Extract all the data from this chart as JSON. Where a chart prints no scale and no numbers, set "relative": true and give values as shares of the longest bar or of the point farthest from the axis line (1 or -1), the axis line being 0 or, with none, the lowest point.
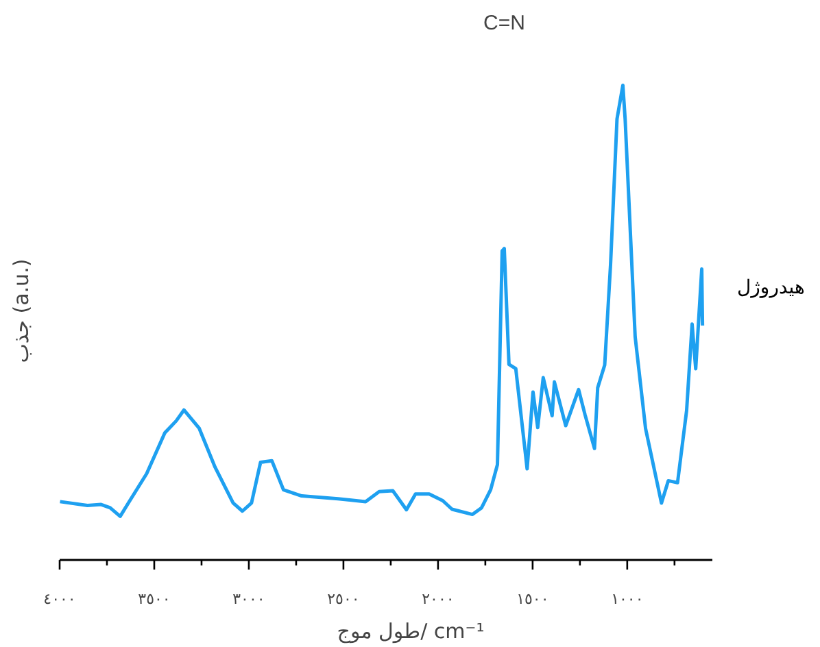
{
  "chart_data": {
    "type": "line",
    "relative": true,
    "xlabel": "طول موج/ cm⁻¹",
    "ylabel": "جذب (a.u.)",
    "annotations": [
      "C=N"
    ],
    "xlim": [
      4000,
      550
    ],
    "xticks": [
      {
        "value": 4000,
        "label": "٤٠٠٠"
      },
      {
        "value": 3750,
        "label": null
      },
      {
        "value": 3500,
        "label": "٣٥٠٠"
      },
      {
        "value": 3250,
        "label": null
      },
      {
        "value": 3000,
        "label": "٣٠٠٠"
      },
      {
        "value": 2750,
        "label": null
      },
      {
        "value": 2500,
        "label": "٢٥٠٠"
      },
      {
        "value": 2250,
        "label": null
      },
      {
        "value": 2000,
        "label": "٢٠٠٠"
      },
      {
        "value": 1750,
        "label": null
      },
      {
        "value": 1500,
        "label": "١٥٠٠"
      },
      {
        "value": 1250,
        "label": null
      },
      {
        "value": 1000,
        "label": "١٠٠٠"
      },
      {
        "value": 750,
        "label": null
      }
    ],
    "grid": false,
    "legend": false,
    "series": [
      {
        "name": "هیدروژل",
        "color": "#1ea0f0",
        "x": [
          3998,
          3853,
          3781,
          3733,
          3680,
          3637,
          3540,
          3444,
          3384,
          3343,
          3263,
          3179,
          3083,
          3034,
          2986,
          2938,
          2878,
          2817,
          2721,
          2528,
          2383,
          2311,
          2239,
          2167,
          2119,
          2047,
          1975,
          1926,
          1818,
          1770,
          1722,
          1686,
          1661,
          1650,
          1625,
          1589,
          1529,
          1498,
          1473,
          1444,
          1397,
          1385,
          1325,
          1257,
          1223,
          1173,
          1156,
          1119,
          1088,
          1054,
          1023,
          1011,
          958,
          903,
          819,
          783,
          734,
          686,
          657,
          638,
          606,
          602
        ],
        "values": [
          0.123,
          0.115,
          0.117,
          0.11,
          0.092,
          0.12,
          0.182,
          0.268,
          0.293,
          0.316,
          0.278,
          0.196,
          0.12,
          0.103,
          0.12,
          0.206,
          0.209,
          0.148,
          0.135,
          0.129,
          0.123,
          0.144,
          0.146,
          0.106,
          0.139,
          0.139,
          0.125,
          0.107,
          0.096,
          0.11,
          0.148,
          0.201,
          0.651,
          0.656,
          0.412,
          0.403,
          0.192,
          0.354,
          0.279,
          0.384,
          0.304,
          0.375,
          0.283,
          0.359,
          0.306,
          0.235,
          0.363,
          0.411,
          0.623,
          0.929,
          1.0,
          0.929,
          0.47,
          0.277,
          0.12,
          0.167,
          0.163,
          0.315,
          0.497,
          0.403,
          0.613,
          0.494
        ]
      }
    ]
  }
}
